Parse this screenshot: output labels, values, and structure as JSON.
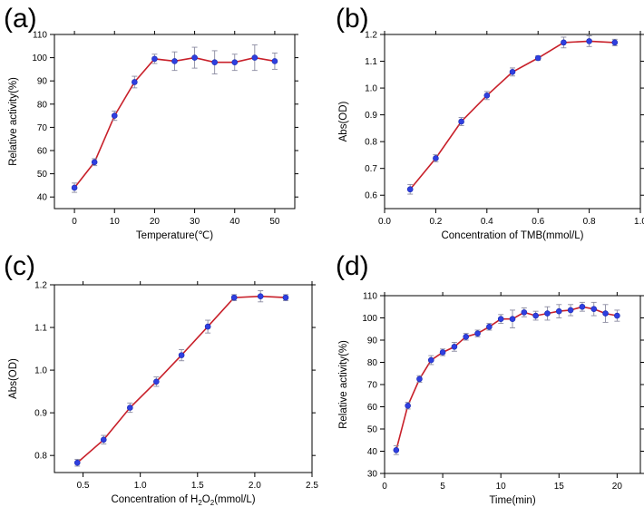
{
  "chart_data": [
    {
      "type": "line",
      "panel_label": "(a)",
      "xlabel": "Temperature(℃)",
      "ylabel": "Relative activity(%)",
      "xlim": [
        -5,
        55
      ],
      "ylim": [
        35,
        110
      ],
      "xticks": [
        0,
        10,
        20,
        30,
        40,
        50
      ],
      "yticks": [
        40,
        50,
        60,
        70,
        80,
        90,
        100,
        110
      ],
      "tick_decimals": 0,
      "x": [
        0,
        5,
        10,
        15,
        20,
        25,
        30,
        35,
        40,
        45,
        50
      ],
      "y": [
        44,
        55,
        75,
        89.5,
        99.5,
        98.5,
        100,
        98,
        98,
        100,
        98.5
      ],
      "err": [
        2,
        1.5,
        2,
        2.5,
        2,
        4,
        4.5,
        5,
        3.5,
        5.5,
        3.5
      ]
    },
    {
      "type": "line",
      "panel_label": "(b)",
      "xlabel": "Concentration of TMB(mmol/L)",
      "ylabel": "Abs(OD)",
      "xlim": [
        0,
        1.0
      ],
      "ylim": [
        0.55,
        1.2
      ],
      "xticks": [
        0.0,
        0.2,
        0.4,
        0.6,
        0.8,
        1.0
      ],
      "yticks": [
        0.6,
        0.7,
        0.8,
        0.9,
        1.0,
        1.1,
        1.2
      ],
      "tick_decimals": 1,
      "x": [
        0.1,
        0.2,
        0.3,
        0.4,
        0.5,
        0.6,
        0.7,
        0.8,
        0.9
      ],
      "y": [
        0.622,
        0.738,
        0.875,
        0.972,
        1.06,
        1.112,
        1.17,
        1.175,
        1.17
      ],
      "err": [
        0.018,
        0.013,
        0.015,
        0.015,
        0.015,
        0.008,
        0.02,
        0.02,
        0.012
      ]
    },
    {
      "type": "line",
      "panel_label": "(c)",
      "xlabel_parts": [
        "Concentration of H",
        "2",
        "O",
        "2",
        "(mmol/L)"
      ],
      "ylabel": "Abs(OD)",
      "xlim": [
        0.25,
        2.5
      ],
      "ylim": [
        0.76,
        1.2
      ],
      "xticks": [
        0.5,
        1.0,
        1.5,
        2.0,
        2.5
      ],
      "yticks": [
        0.8,
        0.9,
        1.0,
        1.1,
        1.2
      ],
      "tick_decimals": 1,
      "x": [
        0.45,
        0.68,
        0.91,
        1.14,
        1.36,
        1.59,
        1.82,
        2.05,
        2.27
      ],
      "y": [
        0.783,
        0.837,
        0.912,
        0.973,
        1.035,
        1.102,
        1.17,
        1.173,
        1.17
      ],
      "err": [
        0.008,
        0.01,
        0.011,
        0.011,
        0.013,
        0.015,
        0.007,
        0.013,
        0.007
      ]
    },
    {
      "type": "line",
      "panel_label": "(d)",
      "xlabel": "Time(min)",
      "ylabel": "Relative activity(%)",
      "xlim": [
        0,
        22
      ],
      "ylim": [
        30,
        110
      ],
      "xticks": [
        0,
        5,
        10,
        15,
        20
      ],
      "yticks": [
        30,
        40,
        50,
        60,
        70,
        80,
        90,
        100,
        110
      ],
      "tick_decimals": 0,
      "x": [
        1,
        2,
        3,
        4,
        5,
        6,
        7,
        8,
        9,
        10,
        11,
        12,
        13,
        14,
        15,
        16,
        17,
        18,
        19,
        20
      ],
      "y": [
        40.5,
        60.5,
        72.5,
        81,
        84.5,
        87,
        91.5,
        93,
        96,
        99.5,
        99.5,
        102.5,
        101,
        102,
        103,
        103.5,
        105,
        104,
        102,
        101
      ],
      "err": [
        2,
        1.5,
        1.5,
        2,
        1.5,
        2,
        1.5,
        1.5,
        1.5,
        2,
        4,
        2,
        2,
        3,
        3,
        2.5,
        2,
        3,
        4,
        2.5
      ]
    }
  ]
}
